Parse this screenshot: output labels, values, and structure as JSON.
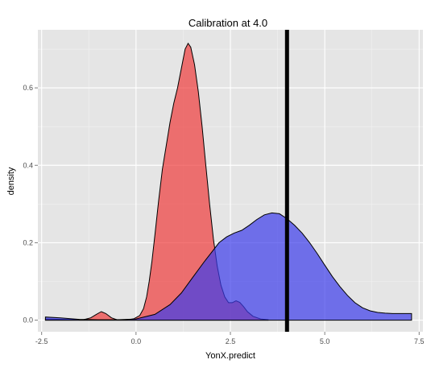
{
  "chart_data": {
    "type": "area",
    "title": "Calibration at 4.0",
    "xlabel": "YonX.predict",
    "ylabel": "density",
    "xlim": [
      -2.6,
      7.6
    ],
    "ylim": [
      -0.03,
      0.75
    ],
    "x_ticks": [
      {
        "value": -2.5,
        "label": "-2.5"
      },
      {
        "value": 0,
        "label": "0.0"
      },
      {
        "value": 2.5,
        "label": "2.5"
      },
      {
        "value": 5,
        "label": "5.0"
      },
      {
        "value": 7.5,
        "label": "7.5"
      }
    ],
    "y_ticks": [
      {
        "value": 0,
        "label": "0.0"
      },
      {
        "value": 0.2,
        "label": "0.2"
      },
      {
        "value": 0.4,
        "label": "0.4"
      },
      {
        "value": 0.6,
        "label": "0.6"
      }
    ],
    "grid": true,
    "legend": "none",
    "vline": {
      "x": 4.0,
      "color": "#000000"
    },
    "series": [
      {
        "color": "#f03c3c",
        "points": [
          [
            -2.4,
            0.003
          ],
          [
            -2.0,
            0.002
          ],
          [
            -1.4,
            0.001
          ],
          [
            -1.2,
            0.006
          ],
          [
            -1.05,
            0.015
          ],
          [
            -0.92,
            0.022
          ],
          [
            -0.8,
            0.017
          ],
          [
            -0.65,
            0.006
          ],
          [
            -0.5,
            0.001
          ],
          [
            -0.2,
            0.001
          ],
          [
            -0.05,
            0.004
          ],
          [
            0.1,
            0.012
          ],
          [
            0.2,
            0.03
          ],
          [
            0.28,
            0.06
          ],
          [
            0.35,
            0.1
          ],
          [
            0.42,
            0.15
          ],
          [
            0.5,
            0.22
          ],
          [
            0.6,
            0.31
          ],
          [
            0.7,
            0.39
          ],
          [
            0.8,
            0.45
          ],
          [
            0.9,
            0.51
          ],
          [
            1.0,
            0.56
          ],
          [
            1.1,
            0.6
          ],
          [
            1.2,
            0.65
          ],
          [
            1.3,
            0.7
          ],
          [
            1.38,
            0.715
          ],
          [
            1.45,
            0.705
          ],
          [
            1.55,
            0.66
          ],
          [
            1.65,
            0.59
          ],
          [
            1.75,
            0.5
          ],
          [
            1.85,
            0.4
          ],
          [
            1.95,
            0.3
          ],
          [
            2.05,
            0.21
          ],
          [
            2.15,
            0.14
          ],
          [
            2.25,
            0.09
          ],
          [
            2.35,
            0.06
          ],
          [
            2.45,
            0.045
          ],
          [
            2.55,
            0.045
          ],
          [
            2.65,
            0.05
          ],
          [
            2.75,
            0.046
          ],
          [
            2.85,
            0.035
          ],
          [
            2.95,
            0.022
          ],
          [
            3.1,
            0.01
          ],
          [
            3.3,
            0.003
          ],
          [
            3.5,
            0.001
          ]
        ]
      },
      {
        "color": "#3c3ceb",
        "points": [
          [
            -2.4,
            0.008
          ],
          [
            -2.0,
            0.006
          ],
          [
            -1.5,
            0.002
          ],
          [
            -1.0,
            0.001
          ],
          [
            -0.5,
            0.001
          ],
          [
            0.0,
            0.003
          ],
          [
            0.5,
            0.015
          ],
          [
            0.9,
            0.04
          ],
          [
            1.2,
            0.07
          ],
          [
            1.5,
            0.11
          ],
          [
            1.8,
            0.15
          ],
          [
            2.0,
            0.175
          ],
          [
            2.2,
            0.2
          ],
          [
            2.4,
            0.215
          ],
          [
            2.6,
            0.225
          ],
          [
            2.8,
            0.232
          ],
          [
            3.0,
            0.245
          ],
          [
            3.2,
            0.26
          ],
          [
            3.4,
            0.272
          ],
          [
            3.6,
            0.277
          ],
          [
            3.8,
            0.275
          ],
          [
            4.0,
            0.262
          ],
          [
            4.2,
            0.245
          ],
          [
            4.4,
            0.225
          ],
          [
            4.6,
            0.2
          ],
          [
            4.8,
            0.172
          ],
          [
            5.0,
            0.142
          ],
          [
            5.2,
            0.113
          ],
          [
            5.4,
            0.087
          ],
          [
            5.6,
            0.064
          ],
          [
            5.8,
            0.045
          ],
          [
            6.0,
            0.032
          ],
          [
            6.2,
            0.024
          ],
          [
            6.4,
            0.02
          ],
          [
            6.6,
            0.018
          ],
          [
            6.8,
            0.017
          ],
          [
            7.0,
            0.017
          ],
          [
            7.3,
            0.017
          ]
        ]
      }
    ]
  }
}
